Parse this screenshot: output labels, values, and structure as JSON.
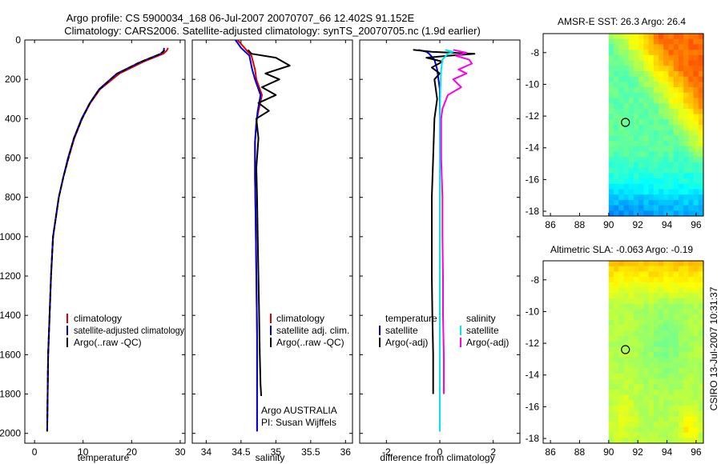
{
  "titles": {
    "line1": "Argo profile: CS 5900034_168 06-Jul-2007 20070707_66 12.402S 91.152E",
    "line2": "Climatology: CARS2006. Satellite-adjusted climatology: synTS_20070705.nc (1.9d earlier)"
  },
  "side_label": "CSIRO 13-Jul-2007 10:31:37",
  "colors": {
    "climatology": "#e00000",
    "satellite": "#0000dd",
    "argo": "#000000",
    "sal_satellite": "#00e5ee",
    "sal_argo": "#ff00e0"
  },
  "chart_data": [
    {
      "type": "line",
      "id": "temp",
      "xlabel": "temperature",
      "xlim": [
        -2,
        31
      ],
      "ylim": [
        0,
        2050
      ],
      "xticks": [
        0,
        10,
        20,
        30
      ],
      "yticks": [
        0,
        200,
        400,
        600,
        800,
        1000,
        1200,
        1400,
        1600,
        1800,
        2000
      ],
      "legend": [
        "climatology",
        "satellite-adjusted climatology",
        "Argo(..raw -QC)"
      ],
      "series": [
        {
          "name": "climatology",
          "color": "#e00000",
          "dash": "",
          "x": [
            27.5,
            27.2,
            26.5,
            22.5,
            17.5,
            13.5,
            11.5,
            9.8,
            8.2,
            7.0,
            5.9,
            5.0,
            4.4,
            3.8,
            3.4,
            3.1,
            2.8,
            2.6
          ],
          "y": [
            40,
            55,
            70,
            110,
            170,
            250,
            320,
            400,
            500,
            600,
            700,
            800,
            900,
            1000,
            1200,
            1400,
            1600,
            1990
          ]
        },
        {
          "name": "satellite-adjusted climatology",
          "color": "#0000dd",
          "dash": "",
          "x": [
            26.7,
            26.6,
            26.0,
            22.0,
            17.0,
            13.3,
            11.4,
            9.7,
            8.1,
            6.9,
            5.9,
            5.0,
            4.4,
            3.8,
            3.4,
            3.1,
            2.8,
            2.6
          ],
          "y": [
            40,
            55,
            70,
            110,
            170,
            250,
            320,
            400,
            500,
            600,
            700,
            800,
            900,
            1000,
            1200,
            1400,
            1600,
            1990
          ]
        },
        {
          "name": "Argo(..raw -QC)",
          "color": "#000000",
          "dash": "6,3",
          "x": [
            26.8,
            26.5,
            25.5,
            21.5,
            16.8,
            13.2,
            11.3,
            9.7,
            8.1,
            7.0,
            5.9,
            5.0,
            4.4,
            3.8,
            3.4,
            3.1,
            2.8,
            2.6
          ],
          "y": [
            50,
            60,
            75,
            115,
            175,
            255,
            325,
            405,
            500,
            600,
            700,
            800,
            900,
            1000,
            1200,
            1400,
            1600,
            1990
          ]
        }
      ]
    },
    {
      "type": "line",
      "id": "sal",
      "xlabel": "salinity",
      "xlim": [
        33.8,
        36.1
      ],
      "ylim": [
        0,
        2050
      ],
      "xticks": [
        34,
        34.5,
        35,
        35.5,
        36
      ],
      "xtick_labels": [
        "34",
        "34.5",
        "35",
        "35.5",
        "36"
      ],
      "legend": [
        "climatology",
        "satellite adj. clim.",
        "Argo(..raw -QC)"
      ],
      "credit": [
        "Argo AUSTRALIA",
        "PI: Susan Wijffels"
      ],
      "series": [
        {
          "name": "climatology",
          "color": "#e00000",
          "dash": "",
          "x": [
            34.45,
            34.55,
            34.65,
            34.7,
            34.72,
            34.8,
            34.75,
            34.72,
            34.7,
            34.7,
            34.71,
            34.72,
            34.73,
            34.73,
            34.73
          ],
          "y": [
            0,
            40,
            80,
            150,
            200,
            280,
            360,
            420,
            520,
            700,
            900,
            1200,
            1500,
            1800,
            1990
          ]
        },
        {
          "name": "satellite adj. clim.",
          "color": "#0000dd",
          "dash": "",
          "x": [
            34.42,
            34.5,
            34.62,
            34.66,
            34.7,
            34.78,
            34.74,
            34.72,
            34.7,
            34.7,
            34.71,
            34.72,
            34.73,
            34.73,
            34.73
          ],
          "y": [
            0,
            40,
            80,
            150,
            200,
            280,
            360,
            420,
            520,
            700,
            900,
            1200,
            1500,
            1800,
            1990
          ]
        },
        {
          "name": "Argo(..raw -QC)",
          "color": "#000000",
          "dash": "",
          "x": [
            34.6,
            34.65,
            35.0,
            35.2,
            34.85,
            35.05,
            34.8,
            35.0,
            34.75,
            34.9,
            34.72,
            34.75,
            34.72,
            34.73,
            34.74,
            34.75,
            34.76,
            34.77,
            34.78,
            34.79
          ],
          "y": [
            50,
            70,
            90,
            130,
            170,
            200,
            240,
            280,
            320,
            360,
            400,
            500,
            650,
            800,
            1000,
            1200,
            1400,
            1600,
            1750,
            1810
          ]
        }
      ]
    },
    {
      "type": "line",
      "id": "diff",
      "xlabel": "difference from climatology",
      "xlim": [
        -3.0,
        3.0
      ],
      "ylim": [
        0,
        2050
      ],
      "xticks": [
        -2,
        0,
        2
      ],
      "legend_temperature": {
        "title": "temperature",
        "items": [
          "satellite",
          "Argo(-adj)"
        ]
      },
      "legend_salinity": {
        "title": "salinity",
        "items": [
          "satellite",
          "Argo(-adj)"
        ]
      },
      "series": [
        {
          "name": "temperature satellite",
          "color": "#0000dd",
          "dash": "",
          "x": [
            -0.8,
            -0.5,
            -0.4,
            -0.2,
            -0.1,
            0.0,
            0.0,
            0.0,
            0.0,
            0.0
          ],
          "y": [
            50,
            60,
            70,
            100,
            150,
            250,
            400,
            800,
            1400,
            1990
          ]
        },
        {
          "name": "temperature Argo(-adj)",
          "color": "#000000",
          "dash": "",
          "x": [
            -1.0,
            -0.3,
            1.3,
            0.3,
            -0.5,
            0.1,
            -0.3,
            0.0,
            -0.2,
            -0.1,
            -0.2,
            -0.25,
            -0.3,
            -0.3,
            -0.3,
            -0.28,
            -0.25,
            -0.25
          ],
          "y": [
            50,
            60,
            70,
            80,
            90,
            110,
            140,
            170,
            200,
            300,
            400,
            600,
            800,
            1000,
            1200,
            1400,
            1600,
            1800
          ]
        },
        {
          "name": "salinity satellite",
          "color": "#00e5ee",
          "dash": "",
          "x": [
            0.2,
            0.5,
            0.3,
            0.1,
            0.05,
            0.02,
            0.0,
            0.0,
            0.0,
            0.0,
            0.0
          ],
          "y": [
            50,
            60,
            70,
            100,
            150,
            250,
            400,
            600,
            1000,
            1500,
            1990
          ]
        },
        {
          "name": "salinity Argo(-adj)",
          "color": "#ff00e0",
          "dash": "",
          "x": [
            0.5,
            1.0,
            0.6,
            1.1,
            1.2,
            0.7,
            1.0,
            0.5,
            0.8,
            0.3,
            0.1,
            0.05,
            0.05,
            0.1,
            0.1,
            0.12,
            0.12,
            0.15,
            0.15
          ],
          "y": [
            50,
            65,
            80,
            100,
            120,
            150,
            170,
            200,
            240,
            280,
            350,
            400,
            600,
            800,
            1000,
            1200,
            1400,
            1600,
            1800
          ]
        }
      ]
    },
    {
      "type": "heatmap",
      "id": "sst_map",
      "title": "AMSR-E SST: 26.3  Argo: 26.4",
      "xlim": [
        85.5,
        96.5
      ],
      "ylim": [
        -18.3,
        -6.8
      ],
      "xticks": [
        86,
        88,
        90,
        92,
        94,
        96
      ],
      "yticks": [
        -8,
        -10,
        -12,
        -14,
        -16,
        -18
      ],
      "data_lon_start": 90,
      "marker": {
        "lon": 91.15,
        "lat": -12.4
      },
      "description": "warm yellow/orange water in the north-east, green in the centre, cyan/blue in the south"
    },
    {
      "type": "heatmap",
      "id": "sla_map",
      "title": "Altimetric SLA: -0.063  Argo: -0.19",
      "xlim": [
        85.5,
        96.5
      ],
      "ylim": [
        -18.3,
        -6.8
      ],
      "xticks": [
        86,
        88,
        90,
        92,
        94,
        96
      ],
      "yticks": [
        -8,
        -10,
        -12,
        -14,
        -16,
        -18
      ],
      "data_lon_start": 90,
      "marker": {
        "lon": 91.15,
        "lat": -12.4
      },
      "description": "yellow-green in the north, mostly green, slightly cyan near the centre, yellow-green patch in the south-east"
    }
  ]
}
